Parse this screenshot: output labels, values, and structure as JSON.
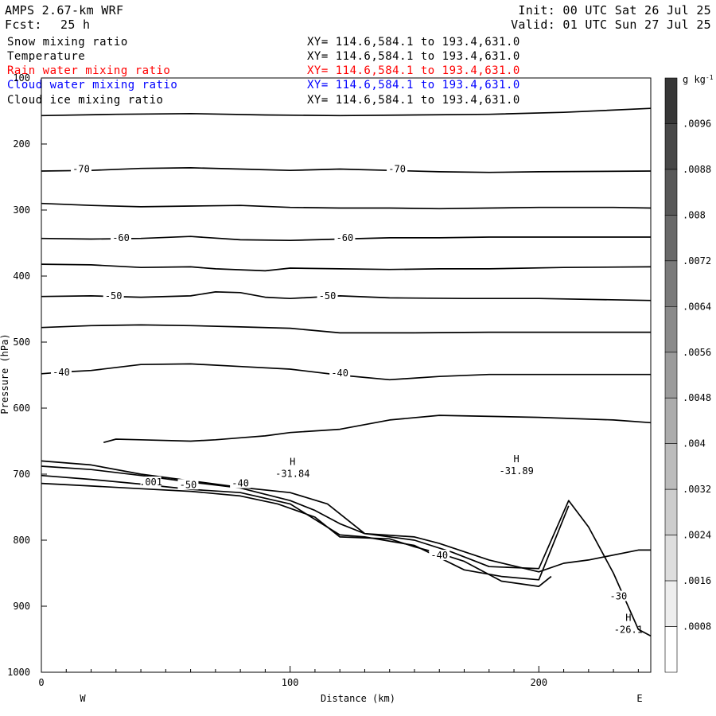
{
  "header": {
    "model": "AMPS 2.67-km WRF",
    "fcst_label": "Fcst:",
    "fcst_value": "25 h",
    "init": "Init: 00 UTC Sat 26 Jul 25",
    "valid": "Valid: 01 UTC Sun 27 Jul 25"
  },
  "fields": [
    {
      "name": "Snow mixing ratio",
      "xy": "XY= 114.6,584.1 to 193.4,631.0",
      "color": "#000000"
    },
    {
      "name": "Temperature",
      "xy": "XY= 114.6,584.1 to 193.4,631.0",
      "color": "#000000"
    },
    {
      "name": "Rain water mixing ratio",
      "xy": "XY= 114.6,584.1 to 193.4,631.0",
      "color": "#ff0000"
    },
    {
      "name": "Cloud water mixing ratio",
      "xy": "XY= 114.6,584.1 to 193.4,631.0",
      "color": "#0000ff"
    },
    {
      "name": "Cloud ice mixing ratio",
      "xy": "XY= 114.6,584.1 to 193.4,631.0",
      "color": "#000000"
    }
  ],
  "chart_data": {
    "type": "contour",
    "xlabel": "Distance (km)",
    "ylabel": "Pressure (hPa)",
    "xlim": [
      0,
      245
    ],
    "ylim": [
      1000,
      100
    ],
    "x_ticks": [
      0,
      100,
      200
    ],
    "y_ticks": [
      100,
      200,
      300,
      400,
      500,
      600,
      700,
      800,
      900,
      1000
    ],
    "direction_left": "W",
    "direction_right": "E",
    "colorbar": {
      "unit": "g kg",
      "unit_exp": "-1",
      "labels": [
        ".0096",
        ".0088",
        ".008",
        ".0072",
        ".0064",
        ".0056",
        ".0048",
        ".004",
        ".0032",
        ".0024",
        ".0016",
        ".0008"
      ],
      "levels": [
        0.0096,
        0.0088,
        0.008,
        0.0072,
        0.0064,
        0.0056,
        0.0048,
        0.004,
        0.0032,
        0.0024,
        0.0016,
        0.0008
      ]
    },
    "isotherms": [
      {
        "pts": [
          [
            0,
            157
          ],
          [
            30,
            155
          ],
          [
            60,
            154
          ],
          [
            90,
            156
          ],
          [
            120,
            157
          ],
          [
            150,
            156
          ],
          [
            180,
            155
          ],
          [
            210,
            152
          ],
          [
            245,
            146
          ]
        ]
      },
      {
        "pts": [
          [
            0,
            241
          ],
          [
            20,
            240
          ],
          [
            40,
            237
          ],
          [
            60,
            236
          ],
          [
            80,
            238
          ],
          [
            100,
            240
          ],
          [
            120,
            238
          ],
          [
            140,
            240
          ],
          [
            160,
            242
          ],
          [
            180,
            243
          ],
          [
            200,
            242
          ],
          [
            245,
            241
          ]
        ],
        "labels": [
          {
            "x": 16,
            "p": 238,
            "text": "-70"
          },
          {
            "x": 143,
            "p": 238,
            "text": "-70"
          }
        ]
      },
      {
        "pts": [
          [
            0,
            290
          ],
          [
            20,
            293
          ],
          [
            40,
            295
          ],
          [
            60,
            294
          ],
          [
            80,
            293
          ],
          [
            100,
            296
          ],
          [
            120,
            297
          ],
          [
            140,
            297
          ],
          [
            160,
            298
          ],
          [
            180,
            297
          ],
          [
            200,
            296
          ],
          [
            230,
            296
          ],
          [
            245,
            297
          ]
        ]
      },
      {
        "pts": [
          [
            0,
            343
          ],
          [
            20,
            344
          ],
          [
            40,
            343
          ],
          [
            60,
            340
          ],
          [
            80,
            345
          ],
          [
            100,
            346
          ],
          [
            120,
            344
          ],
          [
            140,
            342
          ],
          [
            160,
            342
          ],
          [
            180,
            341
          ],
          [
            200,
            341
          ],
          [
            245,
            341
          ]
        ],
        "labels": [
          {
            "x": 32,
            "p": 342,
            "text": "-60"
          },
          {
            "x": 122,
            "p": 342,
            "text": "-60"
          }
        ]
      },
      {
        "pts": [
          [
            0,
            382
          ],
          [
            20,
            383
          ],
          [
            40,
            387
          ],
          [
            60,
            386
          ],
          [
            70,
            389
          ],
          [
            90,
            392
          ],
          [
            100,
            388
          ],
          [
            120,
            389
          ],
          [
            140,
            390
          ],
          [
            160,
            389
          ],
          [
            180,
            389
          ],
          [
            210,
            387
          ],
          [
            245,
            386
          ]
        ]
      },
      {
        "pts": [
          [
            0,
            431
          ],
          [
            20,
            430
          ],
          [
            40,
            432
          ],
          [
            60,
            430
          ],
          [
            70,
            424
          ],
          [
            80,
            425
          ],
          [
            90,
            432
          ],
          [
            100,
            434
          ],
          [
            120,
            430
          ],
          [
            140,
            433
          ],
          [
            170,
            434
          ],
          [
            200,
            434
          ],
          [
            245,
            437
          ]
        ],
        "labels": [
          {
            "x": 29,
            "p": 430,
            "text": "-50"
          },
          {
            "x": 115,
            "p": 430,
            "text": "-50"
          }
        ]
      },
      {
        "pts": [
          [
            0,
            478
          ],
          [
            20,
            475
          ],
          [
            40,
            474
          ],
          [
            60,
            475
          ],
          [
            80,
            477
          ],
          [
            100,
            479
          ],
          [
            120,
            486
          ],
          [
            150,
            486
          ],
          [
            180,
            485
          ],
          [
            245,
            485
          ]
        ]
      },
      {
        "pts": [
          [
            0,
            548
          ],
          [
            10,
            545
          ],
          [
            20,
            543
          ],
          [
            40,
            534
          ],
          [
            60,
            533
          ],
          [
            80,
            537
          ],
          [
            100,
            541
          ],
          [
            120,
            550
          ],
          [
            140,
            557
          ],
          [
            160,
            552
          ],
          [
            180,
            549
          ],
          [
            245,
            549
          ]
        ],
        "labels": [
          {
            "x": 8,
            "p": 546,
            "text": "-40"
          },
          {
            "x": 120,
            "p": 547,
            "text": "-40"
          }
        ]
      },
      {
        "pts": [
          [
            25,
            652
          ],
          [
            30,
            647
          ],
          [
            40,
            648
          ],
          [
            60,
            650
          ],
          [
            70,
            648
          ],
          [
            80,
            645
          ],
          [
            90,
            642
          ],
          [
            100,
            637
          ],
          [
            120,
            632
          ],
          [
            140,
            618
          ],
          [
            160,
            611
          ],
          [
            200,
            614
          ],
          [
            230,
            618
          ],
          [
            245,
            622
          ]
        ]
      },
      {
        "pts": [
          [
            0,
            680
          ],
          [
            20,
            686
          ],
          [
            40,
            700
          ],
          [
            60,
            710
          ],
          [
            80,
            720
          ],
          [
            100,
            728
          ],
          [
            115,
            745
          ],
          [
            130,
            790
          ],
          [
            150,
            795
          ],
          [
            160,
            805
          ],
          [
            180,
            830
          ],
          [
            200,
            848
          ],
          [
            210,
            835
          ],
          [
            220,
            830
          ],
          [
            240,
            815
          ],
          [
            245,
            815
          ]
        ],
        "labels": [
          {
            "x": 160,
            "p": 823,
            "text": "-40"
          }
        ]
      },
      {
        "pts": [
          [
            0,
            688
          ],
          [
            20,
            693
          ],
          [
            40,
            702
          ],
          [
            60,
            712
          ],
          [
            80,
            721
          ],
          [
            100,
            740
          ],
          [
            110,
            755
          ],
          [
            120,
            775
          ],
          [
            130,
            790
          ],
          [
            150,
            800
          ],
          [
            165,
            818
          ],
          [
            180,
            840
          ],
          [
            200,
            843
          ],
          [
            212,
            740
          ],
          [
            220,
            780
          ],
          [
            230,
            850
          ],
          [
            240,
            935
          ],
          [
            245,
            945
          ]
        ],
        "labels": [
          {
            "x": 80,
            "p": 714,
            "text": "-40"
          },
          {
            "x": 59,
            "p": 716,
            "text": "-50"
          },
          {
            "x": 44,
            "p": 712,
            "text": ".001"
          },
          {
            "x": 232,
            "p": 885,
            "text": "-30"
          }
        ]
      },
      {
        "pts": [
          [
            0,
            702
          ],
          [
            20,
            708
          ],
          [
            40,
            715
          ],
          [
            60,
            723
          ],
          [
            80,
            728
          ],
          [
            100,
            745
          ],
          [
            120,
            792
          ],
          [
            130,
            795
          ],
          [
            150,
            808
          ],
          [
            170,
            845
          ],
          [
            185,
            855
          ],
          [
            200,
            860
          ],
          [
            212,
            748
          ]
        ]
      },
      {
        "pts": [
          [
            0,
            714
          ],
          [
            20,
            718
          ],
          [
            40,
            722
          ],
          [
            60,
            726
          ],
          [
            80,
            733
          ],
          [
            95,
            745
          ],
          [
            110,
            765
          ],
          [
            120,
            795
          ],
          [
            140,
            798
          ],
          [
            150,
            810
          ],
          [
            160,
            820
          ],
          [
            170,
            832
          ],
          [
            185,
            862
          ],
          [
            200,
            870
          ],
          [
            205,
            855
          ]
        ]
      }
    ],
    "extremes": [
      {
        "x": 101,
        "p": 686,
        "symbol": "H",
        "value": "-31.84"
      },
      {
        "x": 191,
        "p": 682,
        "symbol": "H",
        "value": "-31.89"
      },
      {
        "x": 236,
        "p": 922,
        "symbol": "H",
        "value": "-26.1"
      }
    ]
  }
}
